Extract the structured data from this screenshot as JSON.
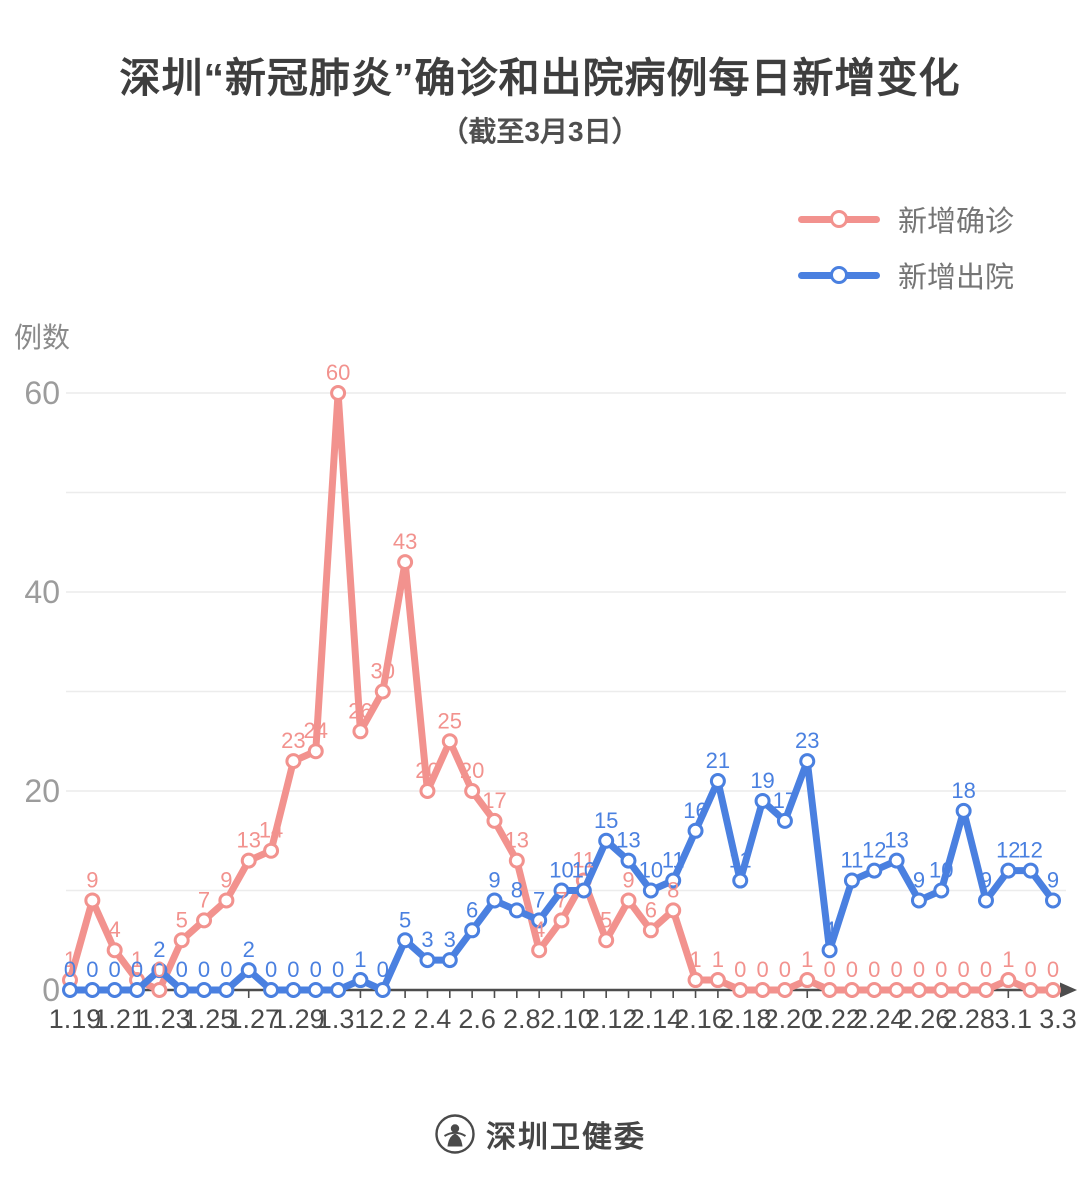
{
  "title": "深圳“新冠肺炎”确诊和出院病例每日新增变化",
  "subtitle": "（截至3月3日）",
  "y_axis_label": "例数",
  "legend": [
    {
      "label": "新增确诊",
      "color": "#F2928E"
    },
    {
      "label": "新增出院",
      "color": "#4A80E0"
    }
  ],
  "footer": {
    "brand": "深圳卫健委",
    "logo": "szhc-emblem"
  },
  "colors": {
    "confirmed": "#F2928E",
    "discharged": "#4A80E0",
    "axis": "#4d4d4d",
    "grid": "#ececec",
    "y_tick_text": "#9c9c9c",
    "x_tick_text": "#4a4a4a"
  },
  "chart_data": {
    "type": "line",
    "title": "深圳“新冠肺炎”确诊和出院病例每日新增变化",
    "subtitle": "（截至3月3日）",
    "ylabel": "例数",
    "ylim": [
      0,
      60
    ],
    "y_ticks": [
      0,
      20,
      40,
      60
    ],
    "grid": true,
    "legend_position": "top-right",
    "point_labels": true,
    "x": [
      "1.19",
      "1.20",
      "1.21",
      "1.22",
      "1.23",
      "1.24",
      "1.25",
      "1.26",
      "1.27",
      "1.28",
      "1.29",
      "1.30",
      "1.31",
      "2.1",
      "2.2",
      "2.3",
      "2.4",
      "2.5",
      "2.6",
      "2.7",
      "2.8",
      "2.9",
      "2.10",
      "2.11",
      "2.12",
      "2.13",
      "2.14",
      "2.15",
      "2.16",
      "2.17",
      "2.18",
      "2.19",
      "2.20",
      "2.21",
      "2.22",
      "2.23",
      "2.24",
      "2.25",
      "2.26",
      "2.27",
      "2.28",
      "2.29",
      "3.1",
      "3.2",
      "3.3"
    ],
    "x_tick_labels": [
      "1.19",
      "1.21",
      "1.23",
      "1.25",
      "1.27",
      "1.29",
      "1.31",
      "2.2",
      "2.4",
      "2.6",
      "2.8",
      "2.10",
      "2.12",
      "2.14",
      "2.16",
      "2.18",
      "2.20",
      "2.22",
      "2.24",
      "2.26",
      "2.28",
      "3.1",
      "3.3"
    ],
    "series": [
      {
        "name": "新增确诊",
        "color": "#F2928E",
        "values": [
          1,
          9,
          4,
          1,
          0,
          5,
          7,
          9,
          13,
          14,
          23,
          24,
          60,
          26,
          30,
          43,
          20,
          25,
          20,
          17,
          13,
          4,
          7,
          11,
          5,
          9,
          6,
          8,
          1,
          1,
          0,
          0,
          0,
          1,
          0,
          0,
          0,
          0,
          0,
          0,
          0,
          0,
          1,
          0,
          0
        ]
      },
      {
        "name": "新增出院",
        "color": "#4A80E0",
        "values": [
          0,
          0,
          0,
          0,
          2,
          0,
          0,
          0,
          2,
          0,
          0,
          0,
          0,
          1,
          0,
          5,
          3,
          3,
          6,
          9,
          8,
          7,
          10,
          10,
          15,
          13,
          10,
          11,
          16,
          21,
          11,
          19,
          17,
          23,
          4,
          11,
          12,
          13,
          9,
          10,
          18,
          9,
          12,
          12,
          9
        ]
      }
    ]
  }
}
